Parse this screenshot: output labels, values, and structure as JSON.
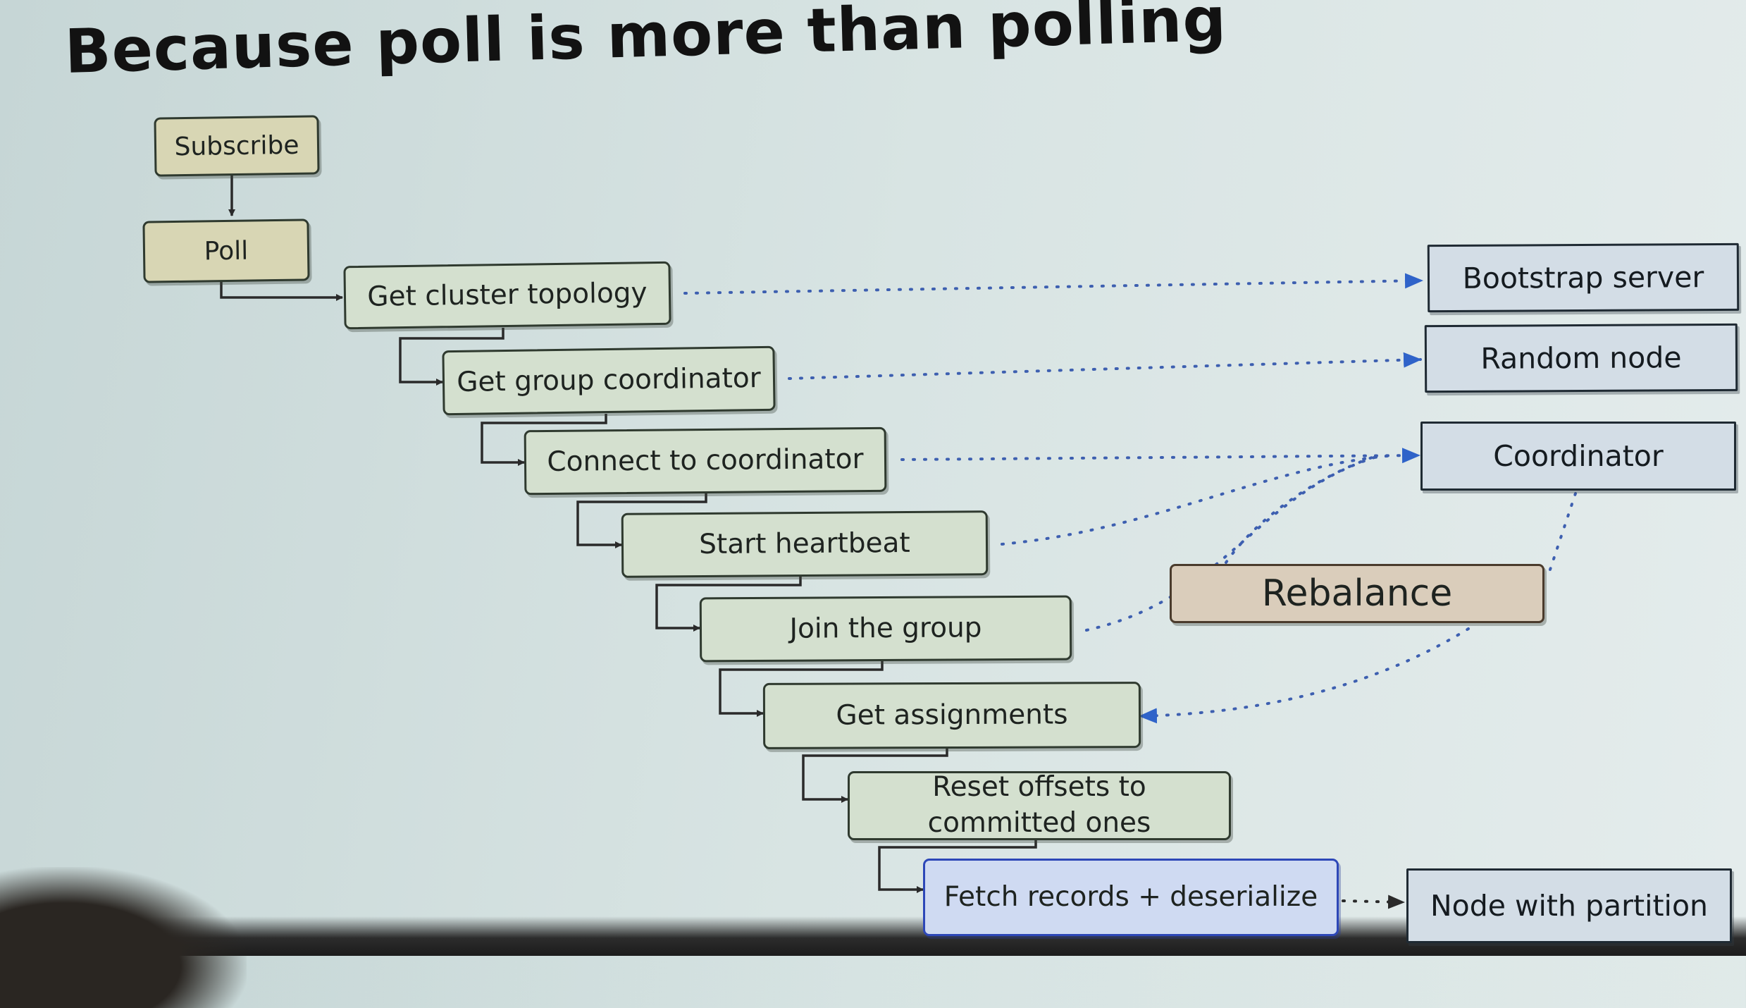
{
  "title": "Because poll is more than polling",
  "steps": {
    "subscribe": "Subscribe",
    "poll": "Poll",
    "get_cluster_topology": "Get cluster topology",
    "get_group_coordinator": "Get group coordinator",
    "connect_to_coordinator": "Connect to coordinator",
    "start_heartbeat": "Start heartbeat",
    "join_the_group": "Join the group",
    "get_assignments": "Get assignments",
    "reset_offsets": "Reset offsets to committed ones",
    "fetch_records": "Fetch records + deserialize"
  },
  "nodes": {
    "bootstrap_server": "Bootstrap server",
    "random_node": "Random node",
    "coordinator": "Coordinator",
    "rebalance": "Rebalance",
    "node_with_partition": "Node with partition"
  },
  "colors": {
    "solid_arrow": "#2a2a2a",
    "dotted_link": "#3d5fb0",
    "arrow_head": "#2f63c9"
  }
}
